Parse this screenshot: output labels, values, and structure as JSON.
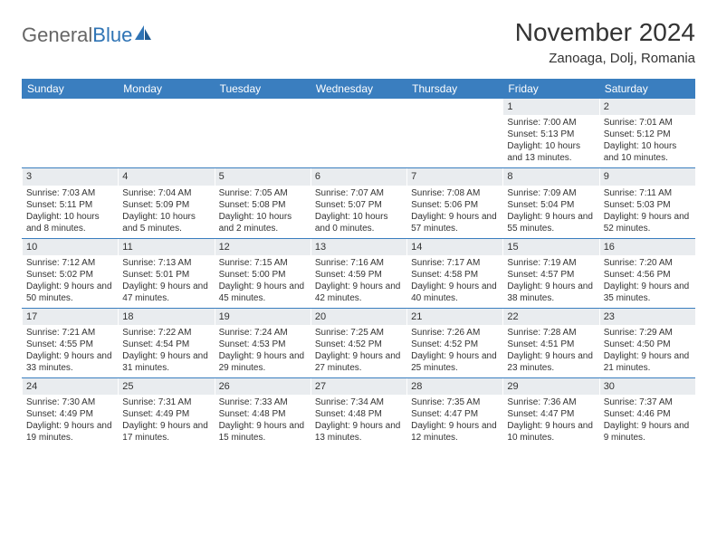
{
  "logo": {
    "word1": "General",
    "word2": "Blue"
  },
  "title": {
    "month": "November 2024",
    "location": "Zanoaga, Dolj, Romania"
  },
  "colors": {
    "header_bg": "#3a7ebf",
    "daynum_bg": "#e9ecef",
    "text": "#333333",
    "logo_blue": "#2f74b5"
  },
  "day_names": [
    "Sunday",
    "Monday",
    "Tuesday",
    "Wednesday",
    "Thursday",
    "Friday",
    "Saturday"
  ],
  "weeks": [
    [
      {
        "empty": true
      },
      {
        "empty": true
      },
      {
        "empty": true
      },
      {
        "empty": true
      },
      {
        "empty": true
      },
      {
        "num": "1",
        "sunrise": "Sunrise: 7:00 AM",
        "sunset": "Sunset: 5:13 PM",
        "daylight": "Daylight: 10 hours and 13 minutes."
      },
      {
        "num": "2",
        "sunrise": "Sunrise: 7:01 AM",
        "sunset": "Sunset: 5:12 PM",
        "daylight": "Daylight: 10 hours and 10 minutes."
      }
    ],
    [
      {
        "num": "3",
        "sunrise": "Sunrise: 7:03 AM",
        "sunset": "Sunset: 5:11 PM",
        "daylight": "Daylight: 10 hours and 8 minutes."
      },
      {
        "num": "4",
        "sunrise": "Sunrise: 7:04 AM",
        "sunset": "Sunset: 5:09 PM",
        "daylight": "Daylight: 10 hours and 5 minutes."
      },
      {
        "num": "5",
        "sunrise": "Sunrise: 7:05 AM",
        "sunset": "Sunset: 5:08 PM",
        "daylight": "Daylight: 10 hours and 2 minutes."
      },
      {
        "num": "6",
        "sunrise": "Sunrise: 7:07 AM",
        "sunset": "Sunset: 5:07 PM",
        "daylight": "Daylight: 10 hours and 0 minutes."
      },
      {
        "num": "7",
        "sunrise": "Sunrise: 7:08 AM",
        "sunset": "Sunset: 5:06 PM",
        "daylight": "Daylight: 9 hours and 57 minutes."
      },
      {
        "num": "8",
        "sunrise": "Sunrise: 7:09 AM",
        "sunset": "Sunset: 5:04 PM",
        "daylight": "Daylight: 9 hours and 55 minutes."
      },
      {
        "num": "9",
        "sunrise": "Sunrise: 7:11 AM",
        "sunset": "Sunset: 5:03 PM",
        "daylight": "Daylight: 9 hours and 52 minutes."
      }
    ],
    [
      {
        "num": "10",
        "sunrise": "Sunrise: 7:12 AM",
        "sunset": "Sunset: 5:02 PM",
        "daylight": "Daylight: 9 hours and 50 minutes."
      },
      {
        "num": "11",
        "sunrise": "Sunrise: 7:13 AM",
        "sunset": "Sunset: 5:01 PM",
        "daylight": "Daylight: 9 hours and 47 minutes."
      },
      {
        "num": "12",
        "sunrise": "Sunrise: 7:15 AM",
        "sunset": "Sunset: 5:00 PM",
        "daylight": "Daylight: 9 hours and 45 minutes."
      },
      {
        "num": "13",
        "sunrise": "Sunrise: 7:16 AM",
        "sunset": "Sunset: 4:59 PM",
        "daylight": "Daylight: 9 hours and 42 minutes."
      },
      {
        "num": "14",
        "sunrise": "Sunrise: 7:17 AM",
        "sunset": "Sunset: 4:58 PM",
        "daylight": "Daylight: 9 hours and 40 minutes."
      },
      {
        "num": "15",
        "sunrise": "Sunrise: 7:19 AM",
        "sunset": "Sunset: 4:57 PM",
        "daylight": "Daylight: 9 hours and 38 minutes."
      },
      {
        "num": "16",
        "sunrise": "Sunrise: 7:20 AM",
        "sunset": "Sunset: 4:56 PM",
        "daylight": "Daylight: 9 hours and 35 minutes."
      }
    ],
    [
      {
        "num": "17",
        "sunrise": "Sunrise: 7:21 AM",
        "sunset": "Sunset: 4:55 PM",
        "daylight": "Daylight: 9 hours and 33 minutes."
      },
      {
        "num": "18",
        "sunrise": "Sunrise: 7:22 AM",
        "sunset": "Sunset: 4:54 PM",
        "daylight": "Daylight: 9 hours and 31 minutes."
      },
      {
        "num": "19",
        "sunrise": "Sunrise: 7:24 AM",
        "sunset": "Sunset: 4:53 PM",
        "daylight": "Daylight: 9 hours and 29 minutes."
      },
      {
        "num": "20",
        "sunrise": "Sunrise: 7:25 AM",
        "sunset": "Sunset: 4:52 PM",
        "daylight": "Daylight: 9 hours and 27 minutes."
      },
      {
        "num": "21",
        "sunrise": "Sunrise: 7:26 AM",
        "sunset": "Sunset: 4:52 PM",
        "daylight": "Daylight: 9 hours and 25 minutes."
      },
      {
        "num": "22",
        "sunrise": "Sunrise: 7:28 AM",
        "sunset": "Sunset: 4:51 PM",
        "daylight": "Daylight: 9 hours and 23 minutes."
      },
      {
        "num": "23",
        "sunrise": "Sunrise: 7:29 AM",
        "sunset": "Sunset: 4:50 PM",
        "daylight": "Daylight: 9 hours and 21 minutes."
      }
    ],
    [
      {
        "num": "24",
        "sunrise": "Sunrise: 7:30 AM",
        "sunset": "Sunset: 4:49 PM",
        "daylight": "Daylight: 9 hours and 19 minutes."
      },
      {
        "num": "25",
        "sunrise": "Sunrise: 7:31 AM",
        "sunset": "Sunset: 4:49 PM",
        "daylight": "Daylight: 9 hours and 17 minutes."
      },
      {
        "num": "26",
        "sunrise": "Sunrise: 7:33 AM",
        "sunset": "Sunset: 4:48 PM",
        "daylight": "Daylight: 9 hours and 15 minutes."
      },
      {
        "num": "27",
        "sunrise": "Sunrise: 7:34 AM",
        "sunset": "Sunset: 4:48 PM",
        "daylight": "Daylight: 9 hours and 13 minutes."
      },
      {
        "num": "28",
        "sunrise": "Sunrise: 7:35 AM",
        "sunset": "Sunset: 4:47 PM",
        "daylight": "Daylight: 9 hours and 12 minutes."
      },
      {
        "num": "29",
        "sunrise": "Sunrise: 7:36 AM",
        "sunset": "Sunset: 4:47 PM",
        "daylight": "Daylight: 9 hours and 10 minutes."
      },
      {
        "num": "30",
        "sunrise": "Sunrise: 7:37 AM",
        "sunset": "Sunset: 4:46 PM",
        "daylight": "Daylight: 9 hours and 9 minutes."
      }
    ]
  ]
}
